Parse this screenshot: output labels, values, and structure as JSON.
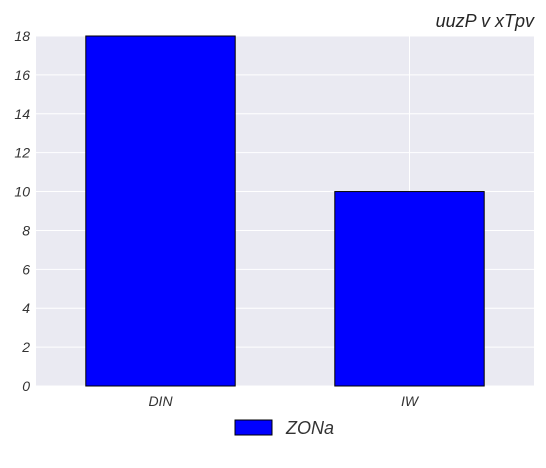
{
  "chart_data": {
    "type": "bar",
    "title": "uuzP v xTpv",
    "xlabel": "",
    "ylabel": "",
    "categories": [
      "DIN",
      "IW"
    ],
    "series": [
      {
        "name": "ZONa",
        "values": [
          18,
          10
        ],
        "color": "#0000ff"
      }
    ],
    "ylim": [
      0,
      18
    ],
    "yticks": [
      0,
      2,
      4,
      6,
      8,
      10,
      12,
      14,
      16,
      18
    ],
    "grid": true,
    "legend_position": "bottom-center",
    "background_color": "#eaeaf2",
    "bar_edge_color": "#000000"
  }
}
